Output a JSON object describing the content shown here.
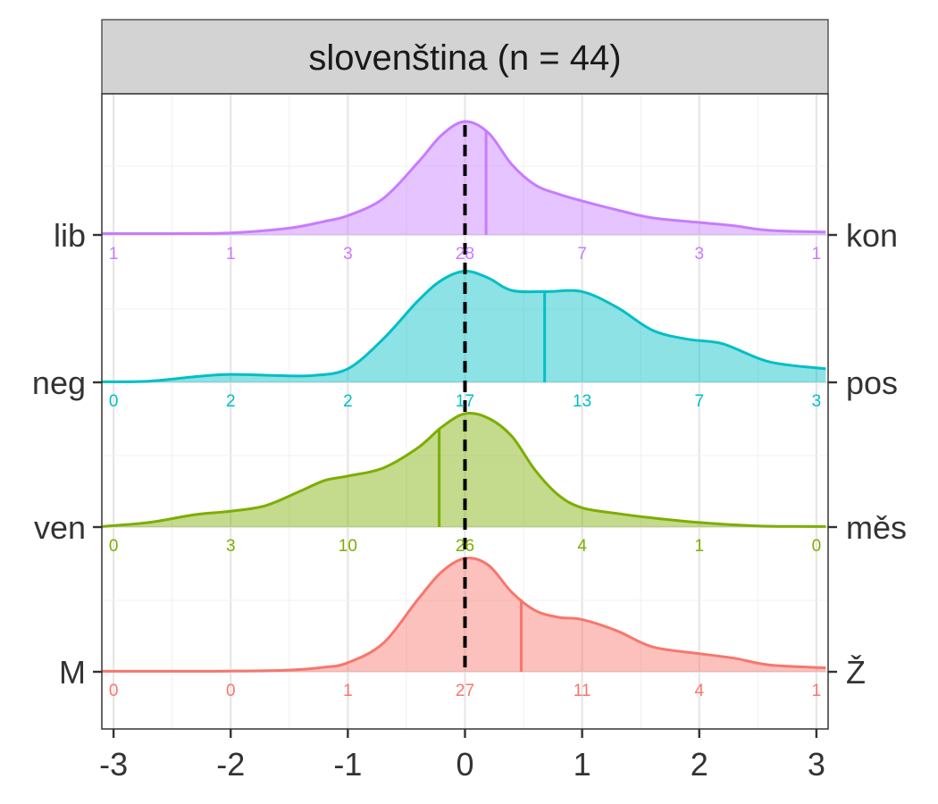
{
  "chart_data": {
    "type": "ridgeline",
    "title": "slovenština (n = 44)",
    "xlabel": "",
    "ylabel": "",
    "x_ticks": [
      -3,
      -2,
      -1,
      0,
      1,
      2,
      3
    ],
    "x_range": [
      -3.1,
      3.1
    ],
    "reference_line": 0,
    "grid": true,
    "bins": [
      -3,
      -2,
      -1,
      0,
      1,
      2,
      3
    ],
    "series": [
      {
        "left_label": "lib",
        "right_label": "kon",
        "color": "#C77CFF",
        "mean": 0.18,
        "counts": [
          1,
          1,
          3,
          28,
          7,
          3,
          1
        ],
        "density": [
          [
            -3.1,
            0.012
          ],
          [
            -2.5,
            0.012
          ],
          [
            -2,
            0.018
          ],
          [
            -1.5,
            0.06
          ],
          [
            -1.2,
            0.12
          ],
          [
            -1,
            0.17
          ],
          [
            -0.7,
            0.32
          ],
          [
            -0.4,
            0.64
          ],
          [
            -0.2,
            0.88
          ],
          [
            0,
            1.0
          ],
          [
            0.2,
            0.9
          ],
          [
            0.4,
            0.62
          ],
          [
            0.6,
            0.44
          ],
          [
            0.8,
            0.36
          ],
          [
            1,
            0.3
          ],
          [
            1.3,
            0.22
          ],
          [
            1.6,
            0.15
          ],
          [
            2,
            0.11
          ],
          [
            2.3,
            0.08
          ],
          [
            2.6,
            0.04
          ],
          [
            3.08,
            0.025
          ]
        ]
      },
      {
        "left_label": "neg",
        "right_label": "pos",
        "color": "#00BFC4",
        "mean": 0.68,
        "counts": [
          0,
          2,
          2,
          17,
          13,
          7,
          3
        ],
        "density": [
          [
            -3.1,
            0.005
          ],
          [
            -2.7,
            0.01
          ],
          [
            -2.3,
            0.05
          ],
          [
            -2,
            0.07
          ],
          [
            -1.6,
            0.06
          ],
          [
            -1.3,
            0.06
          ],
          [
            -1,
            0.12
          ],
          [
            -0.7,
            0.38
          ],
          [
            -0.4,
            0.72
          ],
          [
            -0.2,
            0.9
          ],
          [
            0,
            0.98
          ],
          [
            0.2,
            0.92
          ],
          [
            0.4,
            0.81
          ],
          [
            0.7,
            0.8
          ],
          [
            1,
            0.8
          ],
          [
            1.3,
            0.66
          ],
          [
            1.6,
            0.46
          ],
          [
            1.9,
            0.38
          ],
          [
            2.2,
            0.34
          ],
          [
            2.6,
            0.18
          ],
          [
            3.08,
            0.12
          ]
        ]
      },
      {
        "left_label": "ven",
        "right_label": "měs",
        "color": "#7CAE00",
        "mean": -0.22,
        "counts": [
          0,
          3,
          10,
          26,
          4,
          1,
          0
        ],
        "density": [
          [
            -3.1,
            0.005
          ],
          [
            -2.7,
            0.04
          ],
          [
            -2.3,
            0.11
          ],
          [
            -2,
            0.14
          ],
          [
            -1.7,
            0.19
          ],
          [
            -1.4,
            0.32
          ],
          [
            -1.2,
            0.41
          ],
          [
            -1,
            0.45
          ],
          [
            -0.7,
            0.52
          ],
          [
            -0.4,
            0.7
          ],
          [
            -0.2,
            0.88
          ],
          [
            0,
            1.0
          ],
          [
            0.2,
            0.96
          ],
          [
            0.4,
            0.8
          ],
          [
            0.6,
            0.5
          ],
          [
            0.8,
            0.28
          ],
          [
            1,
            0.17
          ],
          [
            1.3,
            0.12
          ],
          [
            1.6,
            0.08
          ],
          [
            2,
            0.04
          ],
          [
            2.5,
            0.01
          ],
          [
            3.08,
            0.005
          ]
        ]
      },
      {
        "left_label": "M",
        "right_label": "Ž",
        "color": "#F8766D",
        "mean": 0.48,
        "counts": [
          0,
          0,
          1,
          27,
          11,
          4,
          1
        ],
        "density": [
          [
            -3.1,
            0.005
          ],
          [
            -2.5,
            0.005
          ],
          [
            -2,
            0.006
          ],
          [
            -1.5,
            0.015
          ],
          [
            -1.2,
            0.04
          ],
          [
            -1,
            0.08
          ],
          [
            -0.7,
            0.25
          ],
          [
            -0.4,
            0.64
          ],
          [
            -0.2,
            0.88
          ],
          [
            0,
            1.0
          ],
          [
            0.2,
            0.94
          ],
          [
            0.4,
            0.7
          ],
          [
            0.6,
            0.54
          ],
          [
            0.8,
            0.48
          ],
          [
            1,
            0.46
          ],
          [
            1.3,
            0.36
          ],
          [
            1.6,
            0.22
          ],
          [
            2,
            0.16
          ],
          [
            2.3,
            0.12
          ],
          [
            2.6,
            0.06
          ],
          [
            3.08,
            0.035
          ]
        ]
      }
    ]
  }
}
